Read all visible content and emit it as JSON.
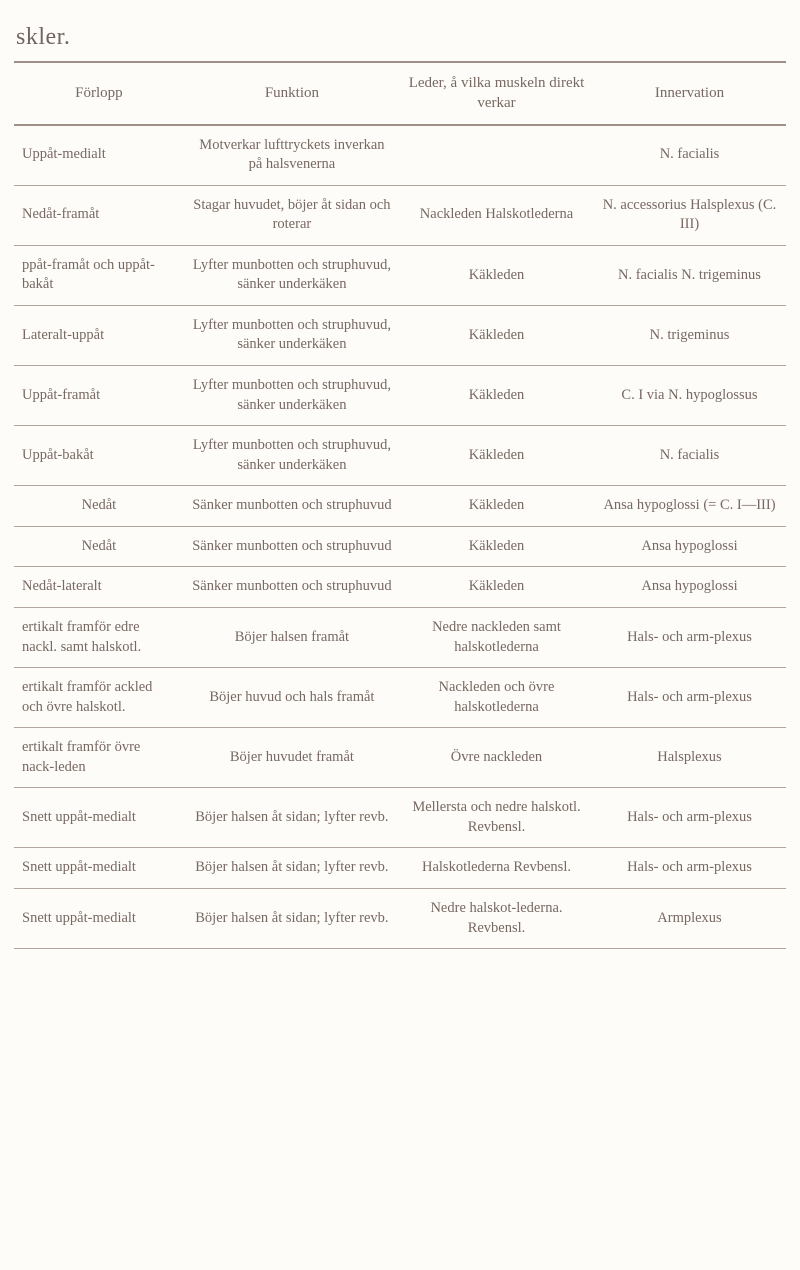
{
  "title": "skler.",
  "headers": {
    "c1": "Förlopp",
    "c2": "Funktion",
    "c3": "Leder, å vilka muskeln direkt verkar",
    "c4": "Innervation"
  },
  "rows": [
    {
      "c1": "Uppåt-medialt",
      "c2": "Motverkar lufttryckets inverkan på halsvenerna",
      "c3": "",
      "c4": "N. facialis"
    },
    {
      "c1": "Nedåt-framåt",
      "c2": "Stagar huvudet, böjer åt sidan och roterar",
      "c3": "Nackleden Halskotlederna",
      "c4": "N. accessorius Halsplexus (C. III)"
    },
    {
      "c1": "ppåt-framåt och uppåt-bakåt",
      "c2": "Lyfter munbotten och struphuvud, sänker underkäken",
      "c3": "Käkleden",
      "c4": "N. facialis N. trigeminus"
    },
    {
      "c1": "Lateralt-uppåt",
      "c2": "Lyfter munbotten och struphuvud, sänker underkäken",
      "c3": "Käkleden",
      "c4": "N. trigeminus"
    },
    {
      "c1": "Uppåt-framåt",
      "c2": "Lyfter munbotten och struphuvud, sänker underkäken",
      "c3": "Käkleden",
      "c4": "C. I via N. hypoglossus"
    },
    {
      "c1": "Uppåt-bakåt",
      "c2": "Lyfter munbotten och struphuvud, sänker underkäken",
      "c3": "Käkleden",
      "c4": "N. facialis"
    },
    {
      "c1": "Nedåt",
      "c2": "Sänker munbotten och struphuvud",
      "c3": "Käkleden",
      "c4": "Ansa hypoglossi (= C. I—III)"
    },
    {
      "c1": "Nedåt",
      "c2": "Sänker munbotten och struphuvud",
      "c3": "Käkleden",
      "c4": "Ansa hypoglossi"
    },
    {
      "c1": "Nedåt-lateralt",
      "c2": "Sänker munbotten och struphuvud",
      "c3": "Käkleden",
      "c4": "Ansa hypoglossi"
    },
    {
      "c1": "ertikalt framför edre nackl. samt halskotl.",
      "c2": "Böjer halsen framåt",
      "c3": "Nedre nackleden samt halskotlederna",
      "c4": "Hals- och arm-plexus"
    },
    {
      "c1": "ertikalt framför ackled och övre halskotl.",
      "c2": "Böjer huvud och hals framåt",
      "c3": "Nackleden och övre halskotlederna",
      "c4": "Hals- och arm-plexus"
    },
    {
      "c1": "ertikalt framför övre nack-leden",
      "c2": "Böjer huvudet framåt",
      "c3": "Övre nackleden",
      "c4": "Halsplexus"
    },
    {
      "c1": "Snett uppåt-medialt",
      "c2": "Böjer halsen åt sidan; lyfter revb.",
      "c3": "Mellersta och nedre halskotl. Revbensl.",
      "c4": "Hals- och arm-plexus"
    },
    {
      "c1": "Snett uppåt-medialt",
      "c2": "Böjer halsen åt sidan; lyfter revb.",
      "c3": "Halskotlederna Revbensl.",
      "c4": "Hals- och arm-plexus"
    },
    {
      "c1": "Snett uppåt-medialt",
      "c2": "Böjer halsen åt sidan; lyfter revb.",
      "c3": "Nedre halskot-lederna. Revbensl.",
      "c4": "Armplexus"
    }
  ]
}
